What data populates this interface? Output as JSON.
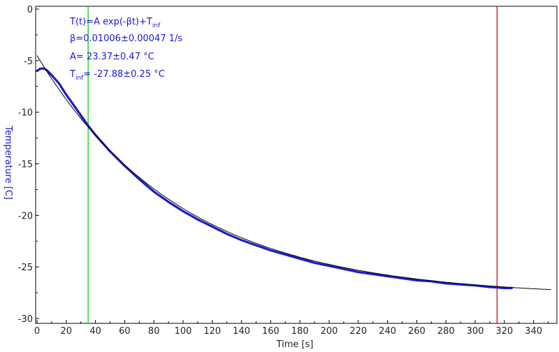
{
  "chart_data": {
    "type": "line",
    "title": "",
    "xlabel": "Time [s]",
    "ylabel": "Temperature [C]",
    "xlim": [
      0,
      352
    ],
    "ylim": [
      -30,
      0
    ],
    "xticks": [
      0,
      20,
      40,
      60,
      80,
      100,
      120,
      140,
      160,
      180,
      200,
      220,
      240,
      260,
      280,
      300,
      320,
      340
    ],
    "yticks": [
      0,
      -5,
      -10,
      -15,
      -20,
      -25,
      -30
    ],
    "grid": false,
    "colors": {
      "data": "#1a1acc",
      "fit": "#000000",
      "start_marker": "#22cc22",
      "end_marker": "#cc2222",
      "axis_title": "#1a1acc",
      "annotation": "#1a1acc"
    },
    "fit": {
      "A": 23.37,
      "beta": 0.01006,
      "T_inf": -27.88,
      "x_range": [
        0,
        352
      ]
    },
    "markers": {
      "start_x": 35,
      "end_x": 315
    },
    "data_series": {
      "x_range": [
        0,
        325
      ],
      "points": [
        [
          0,
          -6.0
        ],
        [
          2,
          -5.8
        ],
        [
          4,
          -5.75
        ],
        [
          6,
          -5.85
        ],
        [
          8,
          -6.1
        ],
        [
          10,
          -6.4
        ],
        [
          15,
          -7.2
        ],
        [
          20,
          -8.3
        ],
        [
          25,
          -9.3
        ],
        [
          30,
          -10.3
        ],
        [
          35,
          -11.3
        ],
        [
          40,
          -12.2
        ],
        [
          50,
          -13.8
        ],
        [
          60,
          -15.2
        ],
        [
          70,
          -16.5
        ],
        [
          80,
          -17.7
        ],
        [
          90,
          -18.7
        ],
        [
          100,
          -19.6
        ],
        [
          110,
          -20.4
        ],
        [
          120,
          -21.1
        ],
        [
          130,
          -21.8
        ],
        [
          140,
          -22.4
        ],
        [
          150,
          -22.9
        ],
        [
          160,
          -23.4
        ],
        [
          170,
          -23.8
        ],
        [
          180,
          -24.2
        ],
        [
          190,
          -24.6
        ],
        [
          200,
          -24.9
        ],
        [
          210,
          -25.2
        ],
        [
          220,
          -25.5
        ],
        [
          230,
          -25.7
        ],
        [
          240,
          -25.9
        ],
        [
          250,
          -26.1
        ],
        [
          260,
          -26.3
        ],
        [
          270,
          -26.4
        ],
        [
          280,
          -26.6
        ],
        [
          290,
          -26.7
        ],
        [
          300,
          -26.8
        ],
        [
          310,
          -26.95
        ],
        [
          315,
          -27.0
        ],
        [
          320,
          -27.05
        ],
        [
          325,
          -27.05
        ]
      ]
    },
    "annotations": {
      "line1_main": "T(t)=A exp(-βt)+T",
      "line1_sub": "inf",
      "line2": "β=0.01006±0.00047 1/s",
      "line3": "A= 23.37±0.47 °C",
      "line4_main": "T",
      "line4_sub": "inf",
      "line4_rest": "= -27.88±0.25 °C"
    }
  }
}
